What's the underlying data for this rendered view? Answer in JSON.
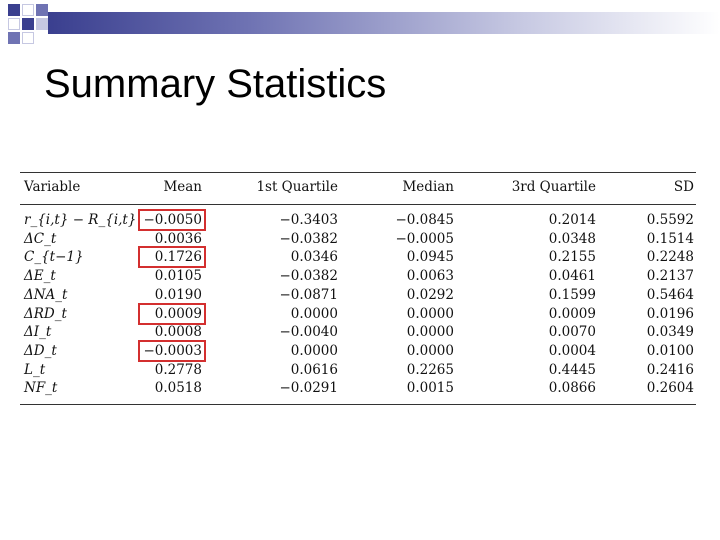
{
  "slide": {
    "title": "Summary Statistics"
  },
  "table": {
    "headers": [
      "Variable",
      "Mean",
      "1st Quartile",
      "Median",
      "3rd Quartile",
      "SD"
    ],
    "rows": [
      [
        "r_{i,t} − R_{i,t}",
        "−0.0050",
        "−0.3403",
        "−0.0845",
        "0.2014",
        "0.5592"
      ],
      [
        "ΔC_t",
        "0.0036",
        "−0.0382",
        "−0.0005",
        "0.0348",
        "0.1514"
      ],
      [
        "C_{t−1}",
        "0.1726",
        "0.0346",
        "0.0945",
        "0.2155",
        "0.2248"
      ],
      [
        "ΔE_t",
        "0.0105",
        "−0.0382",
        "0.0063",
        "0.0461",
        "0.2137"
      ],
      [
        "ΔNA_t",
        "0.0190",
        "−0.0871",
        "0.0292",
        "0.1599",
        "0.5464"
      ],
      [
        "ΔRD_t",
        "0.0009",
        "0.0000",
        "0.0000",
        "0.0009",
        "0.0196"
      ],
      [
        "ΔI_t",
        "0.0008",
        "−0.0040",
        "0.0000",
        "0.0070",
        "0.0349"
      ],
      [
        "ΔD_t",
        "−0.0003",
        "0.0000",
        "0.0000",
        "0.0004",
        "0.0100"
      ],
      [
        "L_t",
        "0.2778",
        "0.0616",
        "0.2265",
        "0.4445",
        "0.2416"
      ],
      [
        "NF_t",
        "0.0518",
        "−0.0291",
        "0.0015",
        "0.0866",
        "0.2604"
      ]
    ],
    "highlighted_mean_rows": [
      0,
      2,
      5,
      7
    ],
    "highlight_color": "#d32f2f"
  },
  "decoration": {
    "bar_color": "#3a3f8f"
  }
}
